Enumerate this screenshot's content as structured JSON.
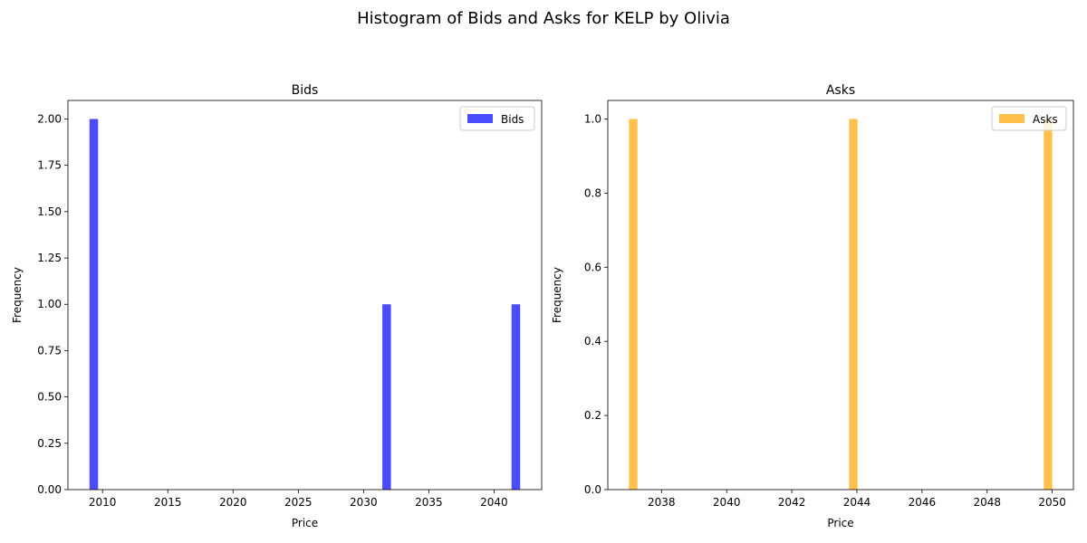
{
  "figure": {
    "suptitle": "Histogram of Bids and Asks for KELP by Olivia"
  },
  "chart_data": [
    {
      "type": "bar",
      "title": "Bids",
      "xlabel": "Price",
      "ylabel": "Frequency",
      "xlim": [
        2007.35,
        2043.65
      ],
      "ylim": [
        0,
        2.1
      ],
      "xticks": [
        2010,
        2015,
        2020,
        2025,
        2030,
        2035,
        2040
      ],
      "xtick_labels": [
        "2010",
        "2015",
        "2020",
        "2025",
        "2030",
        "2035",
        "2040"
      ],
      "yticks": [
        0,
        0.25,
        0.5,
        0.75,
        1.0,
        1.25,
        1.5,
        1.75,
        2.0
      ],
      "ytick_labels": [
        "0.00",
        "0.25",
        "0.50",
        "0.75",
        "1.00",
        "1.25",
        "1.50",
        "1.75",
        "2.00"
      ],
      "bars": [
        {
          "x0": 2009.0,
          "x1": 2009.66,
          "value": 2
        },
        {
          "x0": 2031.44,
          "x1": 2032.1,
          "value": 1
        },
        {
          "x0": 2041.34,
          "x1": 2042.0,
          "value": 1
        }
      ],
      "color": "#0000ff",
      "opacity": 0.7,
      "legend": [
        {
          "label": "Bids",
          "color": "#0000ff"
        }
      ],
      "legend_position": "upper right",
      "grid": false
    },
    {
      "type": "bar",
      "title": "Asks",
      "xlabel": "Price",
      "ylabel": "Frequency",
      "xlim": [
        2036.35,
        2050.65
      ],
      "ylim": [
        0,
        1.05
      ],
      "xticks": [
        2038,
        2040,
        2042,
        2044,
        2046,
        2048,
        2050
      ],
      "xtick_labels": [
        "2038",
        "2040",
        "2042",
        "2044",
        "2046",
        "2048",
        "2050"
      ],
      "yticks": [
        0,
        0.2,
        0.4,
        0.6,
        0.8,
        1.0
      ],
      "ytick_labels": [
        "0.0",
        "0.2",
        "0.4",
        "0.6",
        "0.8",
        "1.0"
      ],
      "bars": [
        {
          "x0": 2037.0,
          "x1": 2037.26,
          "value": 1
        },
        {
          "x0": 2043.76,
          "x1": 2044.02,
          "value": 1
        },
        {
          "x0": 2049.74,
          "x1": 2050.0,
          "value": 1
        }
      ],
      "color": "#ffa500",
      "opacity": 0.7,
      "legend": [
        {
          "label": "Asks",
          "color": "#ffa500"
        }
      ],
      "legend_position": "upper right",
      "grid": false
    }
  ]
}
